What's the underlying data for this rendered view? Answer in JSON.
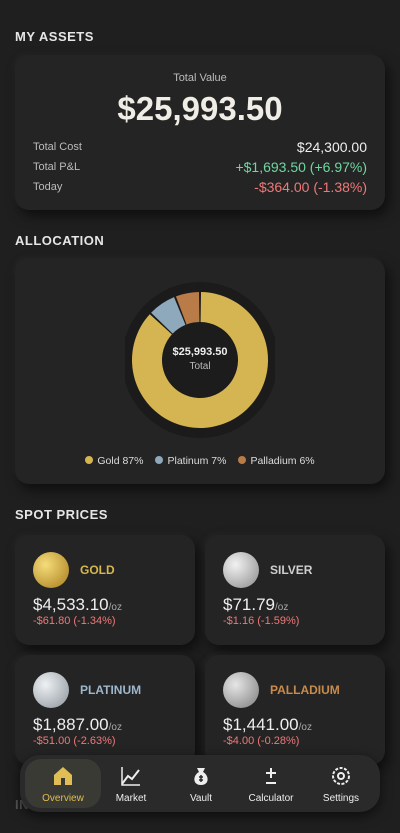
{
  "assets": {
    "section_title": "MY ASSETS",
    "total_label": "Total Value",
    "total_value": "$25,993.50",
    "rows": [
      {
        "label": "Total Cost",
        "value": "$24,300.00",
        "tone": "neutral"
      },
      {
        "label": "Total P&L",
        "value": "+$1,693.50 (+6.97%)",
        "tone": "up"
      },
      {
        "label": "Today",
        "value": "-$364.00 (-1.38%)",
        "tone": "down"
      }
    ]
  },
  "allocation": {
    "section_title": "ALLOCATION",
    "center_value": "$25,993.50",
    "center_label": "Total",
    "labels": [
      "Gold 87%",
      "Platinum 7%",
      "Palladium 6%"
    ],
    "values": [
      87,
      7,
      6
    ],
    "colors": [
      "#d4b551",
      "#8ea8bc",
      "#b97b47"
    ]
  },
  "spot": {
    "section_title": "SPOT PRICES",
    "unit": "/oz",
    "metals": [
      {
        "name": "GOLD",
        "price": "$4,533.10",
        "change": "-$61.80 (-1.34%)",
        "color": "#d7b84e"
      },
      {
        "name": "SILVER",
        "price": "$71.79",
        "change": "-$1.16 (-1.59%)",
        "color": "#cfcfcf"
      },
      {
        "name": "PLATINUM",
        "price": "$1,887.00",
        "change": "-$51.00 (-2.63%)",
        "color": "#9db7cc"
      },
      {
        "name": "PALLADIUM",
        "price": "$1,441.00",
        "change": "-$4.00 (-0.28%)",
        "color": "#c98b4b"
      }
    ]
  },
  "next_section": "IN",
  "nav": {
    "items": [
      "Overview",
      "Market",
      "Vault",
      "Calculator",
      "Settings"
    ],
    "active": 0
  }
}
